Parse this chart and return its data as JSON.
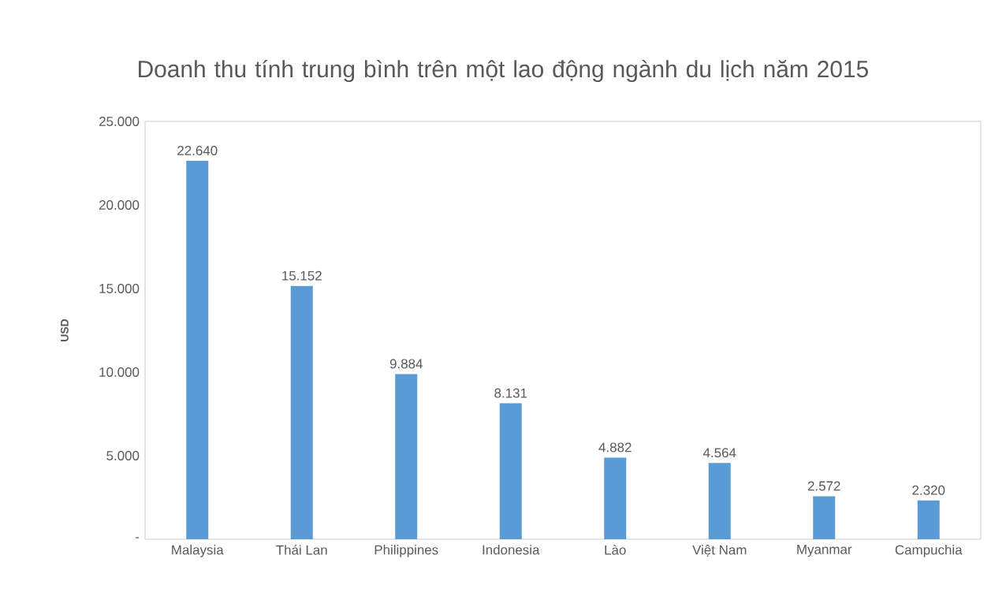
{
  "chart_data": {
    "type": "bar",
    "title": "Doanh thu tính trung bình trên một lao động ngành du lịch năm 2015",
    "ylabel": "USD",
    "categories": [
      "Malaysia",
      "Thái Lan",
      "Philippines",
      "Indonesia",
      "Lào",
      "Việt Nam",
      "Myanmar",
      "Campuchia"
    ],
    "values": [
      22640,
      15152,
      9884,
      8131,
      4882,
      4564,
      2572,
      2320
    ],
    "value_labels": [
      "22.640",
      "15.152",
      "9.884",
      "8.131",
      "4.882",
      "4.564",
      "2.572",
      "2.320"
    ],
    "color": "#5b9bd5",
    "ylim": [
      0,
      25000
    ],
    "yticks": [
      {
        "value": 0,
        "label": "-"
      },
      {
        "value": 5000,
        "label": "5.000"
      },
      {
        "value": 10000,
        "label": "10.000"
      },
      {
        "value": 15000,
        "label": "15.000"
      },
      {
        "value": 20000,
        "label": "20.000"
      },
      {
        "value": 25000,
        "label": "25.000"
      }
    ]
  }
}
